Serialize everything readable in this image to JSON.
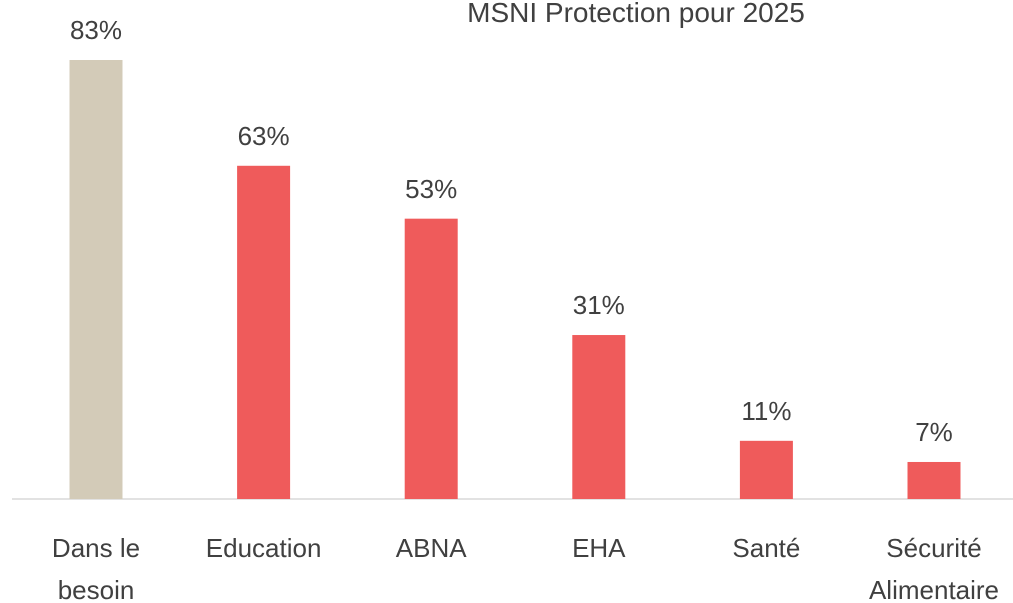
{
  "chart_data": {
    "type": "bar",
    "title": "MSNI Protection pour 2025",
    "categories": [
      "Dans le besoin",
      "Education",
      "ABNA",
      "EHA",
      "Santé",
      "Sécurité Alimentaire"
    ],
    "values": [
      83,
      63,
      53,
      31,
      11,
      7
    ],
    "value_labels": [
      "83%",
      "63%",
      "53%",
      "31%",
      "11%",
      "7%"
    ],
    "colors": [
      "#d3cbb8",
      "#ef5b5b",
      "#ef5b5b",
      "#ef5b5b",
      "#ef5b5b",
      "#ef5b5b"
    ]
  }
}
